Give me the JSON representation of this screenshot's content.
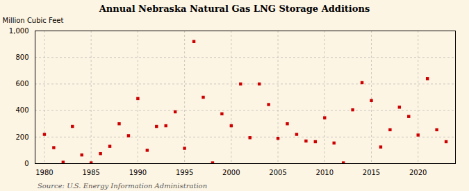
{
  "chart_data": {
    "type": "scatter",
    "title": "Annual Nebraska Natural Gas LNG Storage Additions",
    "ylabel": "Million Cubic Feet",
    "source": "Source: U.S. Energy Information Administration",
    "x": [
      1980,
      1981,
      1982,
      1983,
      1984,
      1985,
      1986,
      1987,
      1988,
      1989,
      1990,
      1991,
      1992,
      1993,
      1994,
      1995,
      1996,
      1997,
      1998,
      1999,
      2000,
      2001,
      2002,
      2003,
      2004,
      2005,
      2006,
      2007,
      2008,
      2009,
      2010,
      2011,
      2012,
      2013,
      2014,
      2015,
      2016,
      2017,
      2018,
      2019,
      2020,
      2021,
      2022,
      2023
    ],
    "values": [
      220,
      120,
      10,
      280,
      65,
      5,
      75,
      130,
      300,
      210,
      490,
      100,
      280,
      285,
      390,
      115,
      920,
      500,
      5,
      375,
      285,
      600,
      195,
      600,
      445,
      190,
      300,
      220,
      170,
      165,
      345,
      155,
      5,
      405,
      610,
      475,
      125,
      255,
      425,
      355,
      215,
      640,
      255,
      165
    ],
    "color": "#cc0000",
    "marker": "square",
    "xlim": [
      1979,
      2024
    ],
    "ylim": [
      0,
      1000
    ],
    "xticks": [
      1980,
      1985,
      1990,
      1995,
      2000,
      2005,
      2010,
      2015,
      2020
    ],
    "yticks": [
      0,
      200,
      400,
      600,
      800,
      {
        "value": 1000,
        "label": "1,000"
      }
    ],
    "grid": true
  }
}
